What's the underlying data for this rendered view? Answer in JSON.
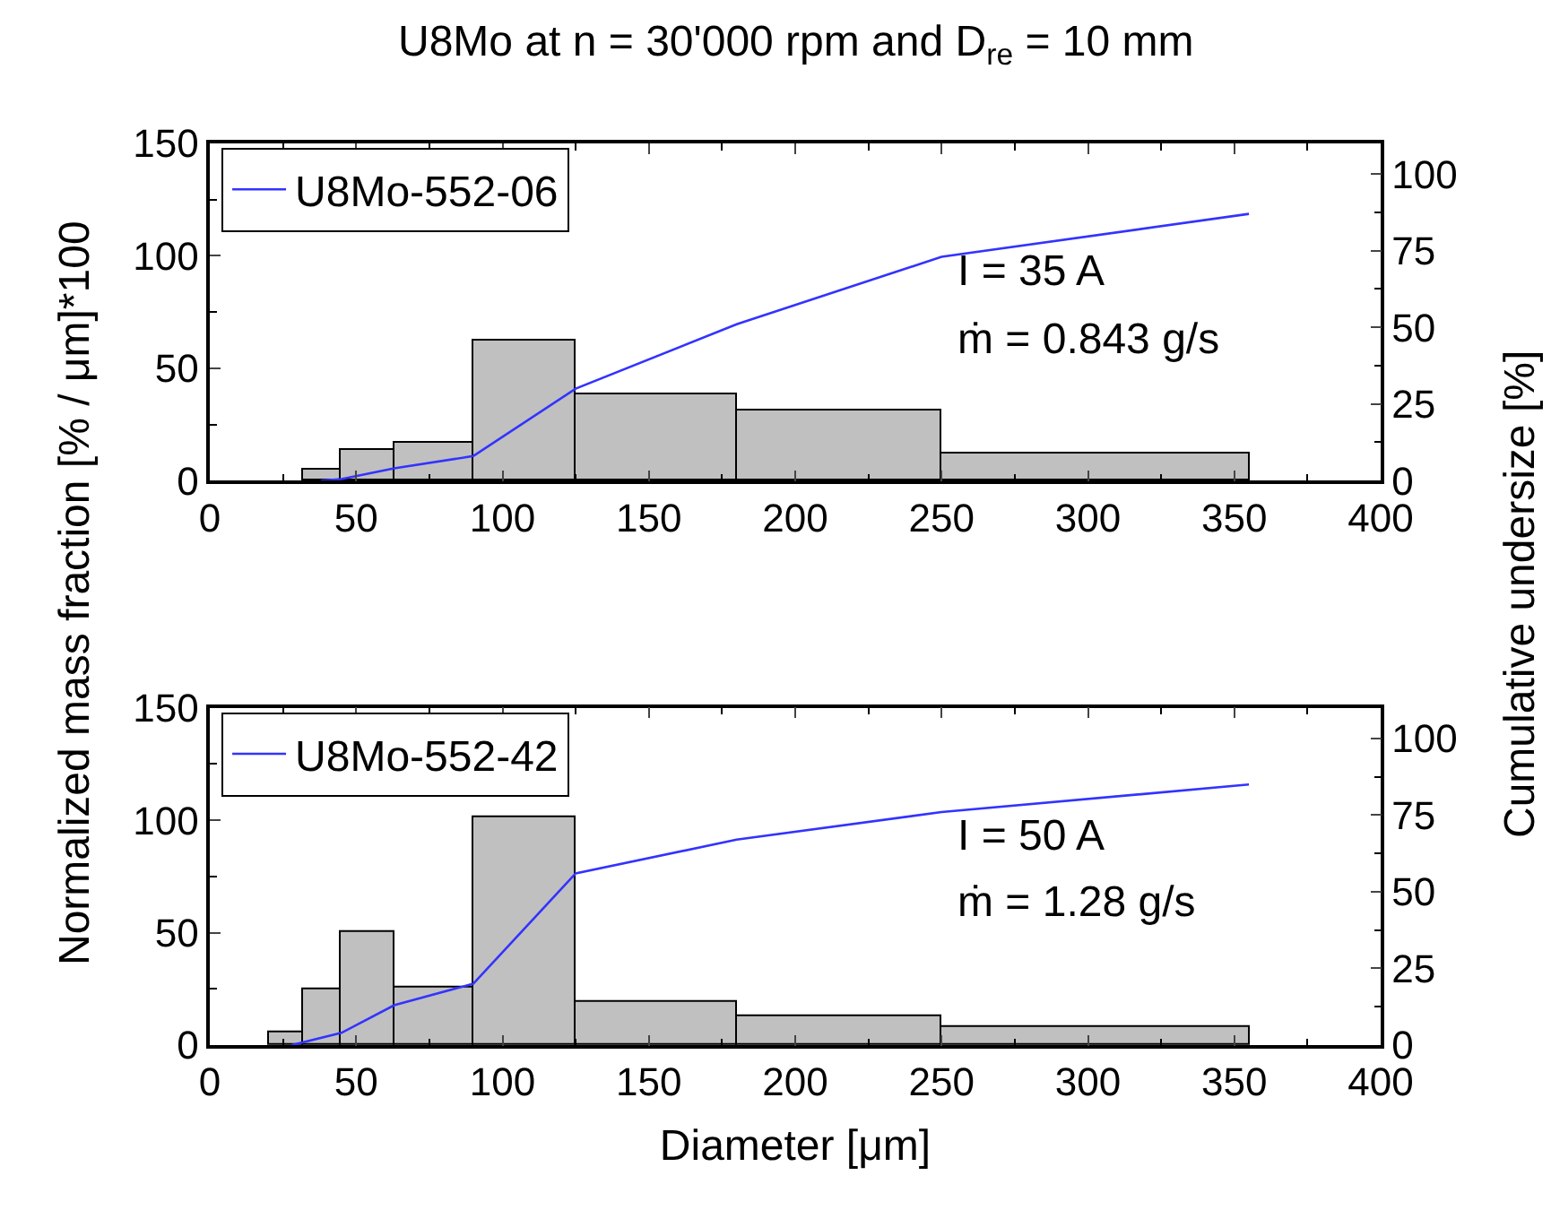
{
  "chart_data": [
    {
      "type": "histogram",
      "title": "U8Mo at n = 30'000 rpm and D$_{re}$ = 10 mm",
      "ylabel": "Normalized mass fraction [% / μm]*100",
      "y2label": "Cumulative undersize [%]",
      "bins": [
        32,
        45,
        63,
        90,
        125,
        180,
        250,
        355
      ],
      "values": [
        5,
        14,
        17,
        62,
        38,
        31,
        12
      ],
      "color": "#c0c0c0",
      "series": [
        {
          "type": "line",
          "name": "U8Mo-552-06",
          "color": "#3333ff",
          "axis": "y2",
          "x": [
            38,
            45,
            63,
            90,
            125,
            180,
            250,
            355
          ],
          "values": [
            0,
            0.5,
            4,
            8,
            30,
            51,
            73,
            87
          ]
        }
      ],
      "xlim": [
        0,
        400
      ],
      "xticks": [
        0,
        50,
        100,
        150,
        200,
        250,
        300,
        350,
        400
      ],
      "ylim": [
        0,
        150
      ],
      "yticks": [
        0,
        50,
        100,
        150
      ],
      "y2lim": [
        0,
        110
      ],
      "y2ticks": [
        0,
        25,
        50,
        75,
        100
      ],
      "annotations": [
        "I = 35 A",
        "ṁ = 0.843 g/s"
      ],
      "legend": "top left"
    },
    {
      "type": "histogram",
      "xlabel": "Diameter [μm]",
      "bins": [
        20,
        32,
        45,
        63,
        90,
        125,
        180,
        250,
        355
      ],
      "values": [
        6,
        25,
        50,
        26,
        101,
        19,
        13,
        8
      ],
      "color": "#c0c0c0",
      "series": [
        {
          "type": "line",
          "name": "U8Mo-552-42",
          "color": "#3333ff",
          "axis": "y2",
          "x": [
            28,
            45,
            63,
            90,
            125,
            180,
            250,
            355
          ],
          "values": [
            0,
            4,
            13,
            20,
            56,
            67,
            76,
            85
          ]
        }
      ],
      "xlim": [
        0,
        400
      ],
      "xticks": [
        0,
        50,
        100,
        150,
        200,
        250,
        300,
        350,
        400
      ],
      "ylim": [
        0,
        150
      ],
      "yticks": [
        0,
        50,
        100,
        150
      ],
      "y2lim": [
        0,
        110
      ],
      "y2ticks": [
        0,
        25,
        50,
        75,
        100
      ],
      "annotations": [
        "I = 50 A",
        "ṁ = 1.28 g/s"
      ],
      "legend": "top left"
    }
  ]
}
